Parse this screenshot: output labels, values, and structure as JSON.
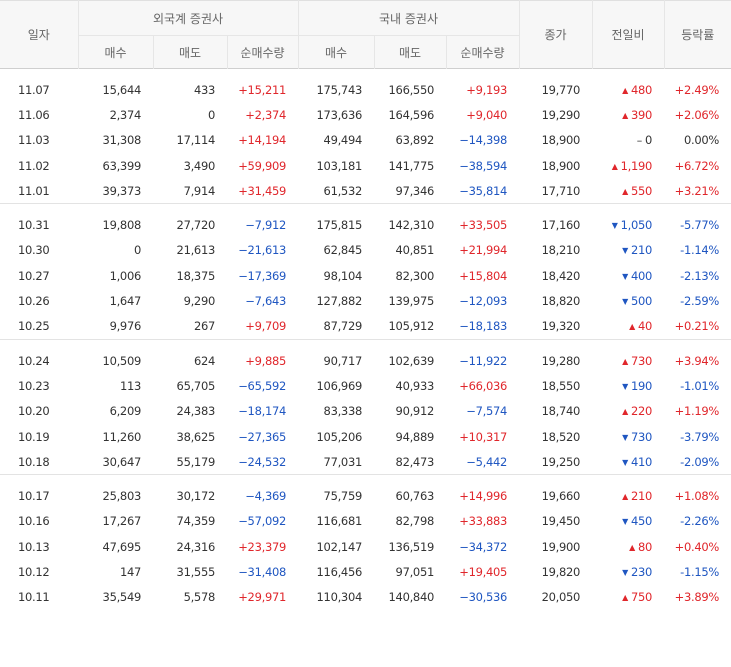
{
  "header": {
    "date": "일자",
    "foreign_group": "외국계 증권사",
    "domestic_group": "국내 증권사",
    "buy": "매수",
    "sell": "매도",
    "net": "순매수량",
    "close": "종가",
    "change": "전일비",
    "rate": "등락률"
  },
  "groups": [
    {
      "rows": [
        {
          "date": "11.07",
          "f_buy": "15,644",
          "f_sell": "433",
          "f_net": "+15,211",
          "d_buy": "175,743",
          "d_sell": "166,550",
          "d_net": "+9,193",
          "close": "19,770",
          "dir": "up",
          "chg": "480",
          "rate": "+2.49%"
        },
        {
          "date": "11.06",
          "f_buy": "2,374",
          "f_sell": "0",
          "f_net": "+2,374",
          "d_buy": "173,636",
          "d_sell": "164,596",
          "d_net": "+9,040",
          "close": "19,290",
          "dir": "up",
          "chg": "390",
          "rate": "+2.06%"
        },
        {
          "date": "11.03",
          "f_buy": "31,308",
          "f_sell": "17,114",
          "f_net": "+14,194",
          "d_buy": "49,494",
          "d_sell": "63,892",
          "d_net": "−14,398",
          "close": "18,900",
          "dir": "flat",
          "chg": "0",
          "rate": "0.00%"
        },
        {
          "date": "11.02",
          "f_buy": "63,399",
          "f_sell": "3,490",
          "f_net": "+59,909",
          "d_buy": "103,181",
          "d_sell": "141,775",
          "d_net": "−38,594",
          "close": "18,900",
          "dir": "up",
          "chg": "1,190",
          "rate": "+6.72%"
        },
        {
          "date": "11.01",
          "f_buy": "39,373",
          "f_sell": "7,914",
          "f_net": "+31,459",
          "d_buy": "61,532",
          "d_sell": "97,346",
          "d_net": "−35,814",
          "close": "17,710",
          "dir": "up",
          "chg": "550",
          "rate": "+3.21%"
        }
      ]
    },
    {
      "rows": [
        {
          "date": "10.31",
          "f_buy": "19,808",
          "f_sell": "27,720",
          "f_net": "−7,912",
          "d_buy": "175,815",
          "d_sell": "142,310",
          "d_net": "+33,505",
          "close": "17,160",
          "dir": "down",
          "chg": "1,050",
          "rate": "-5.77%"
        },
        {
          "date": "10.30",
          "f_buy": "0",
          "f_sell": "21,613",
          "f_net": "−21,613",
          "d_buy": "62,845",
          "d_sell": "40,851",
          "d_net": "+21,994",
          "close": "18,210",
          "dir": "down",
          "chg": "210",
          "rate": "-1.14%"
        },
        {
          "date": "10.27",
          "f_buy": "1,006",
          "f_sell": "18,375",
          "f_net": "−17,369",
          "d_buy": "98,104",
          "d_sell": "82,300",
          "d_net": "+15,804",
          "close": "18,420",
          "dir": "down",
          "chg": "400",
          "rate": "-2.13%"
        },
        {
          "date": "10.26",
          "f_buy": "1,647",
          "f_sell": "9,290",
          "f_net": "−7,643",
          "d_buy": "127,882",
          "d_sell": "139,975",
          "d_net": "−12,093",
          "close": "18,820",
          "dir": "down",
          "chg": "500",
          "rate": "-2.59%"
        },
        {
          "date": "10.25",
          "f_buy": "9,976",
          "f_sell": "267",
          "f_net": "+9,709",
          "d_buy": "87,729",
          "d_sell": "105,912",
          "d_net": "−18,183",
          "close": "19,320",
          "dir": "up",
          "chg": "40",
          "rate": "+0.21%"
        }
      ]
    },
    {
      "rows": [
        {
          "date": "10.24",
          "f_buy": "10,509",
          "f_sell": "624",
          "f_net": "+9,885",
          "d_buy": "90,717",
          "d_sell": "102,639",
          "d_net": "−11,922",
          "close": "19,280",
          "dir": "up",
          "chg": "730",
          "rate": "+3.94%"
        },
        {
          "date": "10.23",
          "f_buy": "113",
          "f_sell": "65,705",
          "f_net": "−65,592",
          "d_buy": "106,969",
          "d_sell": "40,933",
          "d_net": "+66,036",
          "close": "18,550",
          "dir": "down",
          "chg": "190",
          "rate": "-1.01%"
        },
        {
          "date": "10.20",
          "f_buy": "6,209",
          "f_sell": "24,383",
          "f_net": "−18,174",
          "d_buy": "83,338",
          "d_sell": "90,912",
          "d_net": "−7,574",
          "close": "18,740",
          "dir": "up",
          "chg": "220",
          "rate": "+1.19%"
        },
        {
          "date": "10.19",
          "f_buy": "11,260",
          "f_sell": "38,625",
          "f_net": "−27,365",
          "d_buy": "105,206",
          "d_sell": "94,889",
          "d_net": "+10,317",
          "close": "18,520",
          "dir": "down",
          "chg": "730",
          "rate": "-3.79%"
        },
        {
          "date": "10.18",
          "f_buy": "30,647",
          "f_sell": "55,179",
          "f_net": "−24,532",
          "d_buy": "77,031",
          "d_sell": "82,473",
          "d_net": "−5,442",
          "close": "19,250",
          "dir": "down",
          "chg": "410",
          "rate": "-2.09%"
        }
      ]
    },
    {
      "rows": [
        {
          "date": "10.17",
          "f_buy": "25,803",
          "f_sell": "30,172",
          "f_net": "−4,369",
          "d_buy": "75,759",
          "d_sell": "60,763",
          "d_net": "+14,996",
          "close": "19,660",
          "dir": "up",
          "chg": "210",
          "rate": "+1.08%"
        },
        {
          "date": "10.16",
          "f_buy": "17,267",
          "f_sell": "74,359",
          "f_net": "−57,092",
          "d_buy": "116,681",
          "d_sell": "82,798",
          "d_net": "+33,883",
          "close": "19,450",
          "dir": "down",
          "chg": "450",
          "rate": "-2.26%"
        },
        {
          "date": "10.13",
          "f_buy": "47,695",
          "f_sell": "24,316",
          "f_net": "+23,379",
          "d_buy": "102,147",
          "d_sell": "136,519",
          "d_net": "−34,372",
          "close": "19,900",
          "dir": "up",
          "chg": "80",
          "rate": "+0.40%"
        },
        {
          "date": "10.12",
          "f_buy": "147",
          "f_sell": "31,555",
          "f_net": "−31,408",
          "d_buy": "116,456",
          "d_sell": "97,051",
          "d_net": "+19,405",
          "close": "19,820",
          "dir": "down",
          "chg": "230",
          "rate": "-1.15%"
        },
        {
          "date": "10.11",
          "f_buy": "35,549",
          "f_sell": "5,578",
          "f_net": "+29,971",
          "d_buy": "110,304",
          "d_sell": "140,840",
          "d_net": "−30,536",
          "close": "20,050",
          "dir": "up",
          "chg": "750",
          "rate": "+3.89%"
        }
      ]
    }
  ],
  "icons": {
    "up": "triangle-up-icon",
    "down": "triangle-down-icon",
    "flat": "dash-icon"
  },
  "colors": {
    "up": "#e0262b",
    "down": "#1f56c1",
    "neutral": "#333333"
  }
}
